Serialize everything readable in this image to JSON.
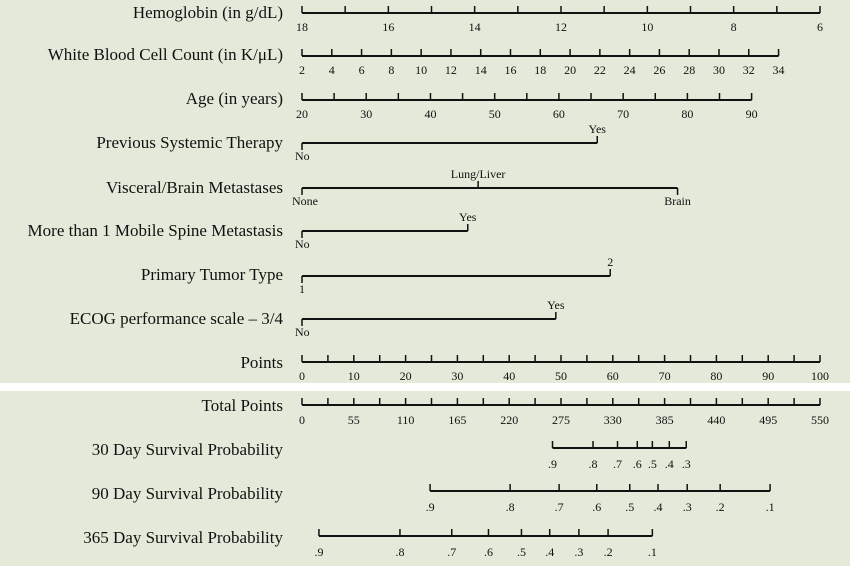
{
  "chart_data": {
    "type": "nomogram",
    "rows": [
      {
        "id": "hemoglobin",
        "label": "Hemoglobin (in g/dL)",
        "ticks": [
          {
            "v": 18,
            "p": 0
          },
          {
            "v": 17,
            "p": 8.33
          },
          {
            "v": 16,
            "p": 16.67
          },
          {
            "v": 15,
            "p": 25
          },
          {
            "v": 14,
            "p": 33.33
          },
          {
            "v": 13,
            "p": 41.67
          },
          {
            "v": 12,
            "p": 50
          },
          {
            "v": 11,
            "p": 58.33
          },
          {
            "v": 10,
            "p": 66.67
          },
          {
            "v": 9,
            "p": 75
          },
          {
            "v": 8,
            "p": 83.33
          },
          {
            "v": 7,
            "p": 91.67
          },
          {
            "v": 6,
            "p": 100
          }
        ],
        "labels": [
          "18",
          "16",
          "14",
          "12",
          "10",
          "8",
          "6"
        ]
      },
      {
        "id": "wbc",
        "label": "White Blood Cell Count (in K/μL)",
        "ticks": [
          {
            "v": 2,
            "p": 0
          },
          {
            "v": 4,
            "p": 5.75
          },
          {
            "v": 6,
            "p": 11.5
          },
          {
            "v": 8,
            "p": 17.25
          },
          {
            "v": 10,
            "p": 23
          },
          {
            "v": 12,
            "p": 28.75
          },
          {
            "v": 14,
            "p": 34.5
          },
          {
            "v": 16,
            "p": 40.25
          },
          {
            "v": 18,
            "p": 46
          },
          {
            "v": 20,
            "p": 51.75
          },
          {
            "v": 22,
            "p": 57.5
          },
          {
            "v": 24,
            "p": 63.25
          },
          {
            "v": 26,
            "p": 69
          },
          {
            "v": 28,
            "p": 74.75
          },
          {
            "v": 30,
            "p": 80.5
          },
          {
            "v": 32,
            "p": 86.25
          },
          {
            "v": 34,
            "p": 92
          }
        ],
        "labels": [
          "2",
          "4",
          "6",
          "8",
          "10",
          "12",
          "14",
          "16",
          "18",
          "20",
          "22",
          "24",
          "26",
          "28",
          "30",
          "32",
          "34"
        ]
      },
      {
        "id": "age",
        "label": "Age (in years)",
        "ticks": [
          {
            "v": 20,
            "p": 0
          },
          {
            "v": 25,
            "p": 6.2
          },
          {
            "v": 30,
            "p": 12.4
          },
          {
            "v": 35,
            "p": 18.6
          },
          {
            "v": 40,
            "p": 24.8
          },
          {
            "v": 45,
            "p": 31
          },
          {
            "v": 50,
            "p": 37.2
          },
          {
            "v": 55,
            "p": 43.4
          },
          {
            "v": 60,
            "p": 49.6
          },
          {
            "v": 65,
            "p": 55.8
          },
          {
            "v": 70,
            "p": 62
          },
          {
            "v": 75,
            "p": 68.2
          },
          {
            "v": 80,
            "p": 74.4
          },
          {
            "v": 85,
            "p": 80.6
          },
          {
            "v": 90,
            "p": 86.8
          }
        ],
        "labels": [
          "20",
          "30",
          "40",
          "50",
          "60",
          "70",
          "80",
          "90"
        ]
      },
      {
        "id": "systemic_therapy",
        "label": "Previous Systemic Therapy",
        "categories": [
          {
            "name": "No",
            "p": 0
          },
          {
            "name": "Yes",
            "p": 57
          }
        ]
      },
      {
        "id": "visceral_brain",
        "label": "Visceral/Brain Metastases",
        "categories": [
          {
            "name": "None",
            "p": 0
          },
          {
            "name": "Lung/Liver",
            "p": 34
          },
          {
            "name": "Brain",
            "p": 72.5
          }
        ]
      },
      {
        "id": "spine_mets",
        "label": "More than 1 Mobile Spine Metastasis",
        "categories": [
          {
            "name": "No",
            "p": 0
          },
          {
            "name": "Yes",
            "p": 32
          }
        ]
      },
      {
        "id": "tumor_type",
        "label": "Primary Tumor Type",
        "categories": [
          {
            "name": "1",
            "p": 0
          },
          {
            "name": "2",
            "p": 59.5
          }
        ]
      },
      {
        "id": "ecog",
        "label": "ECOG performance scale – 3/4",
        "categories": [
          {
            "name": "No",
            "p": 0
          },
          {
            "name": "Yes",
            "p": 49
          }
        ]
      },
      {
        "id": "points",
        "label": "Points",
        "ticks": [
          0,
          5,
          10,
          15,
          20,
          25,
          30,
          35,
          40,
          45,
          50,
          55,
          60,
          65,
          70,
          75,
          80,
          85,
          90,
          95,
          100
        ],
        "labels": [
          "0",
          "10",
          "20",
          "30",
          "40",
          "50",
          "60",
          "70",
          "80",
          "90",
          "100"
        ]
      }
    ],
    "outcomes": [
      {
        "id": "total_points",
        "label": "Total Points",
        "ticks": [
          0,
          27.5,
          55,
          82.5,
          110,
          137.5,
          165,
          192.5,
          220,
          247.5,
          275,
          302.5,
          330,
          357.5,
          385,
          412.5,
          440,
          467.5,
          495,
          522.5,
          550
        ],
        "labels": [
          "0",
          "55",
          "110",
          "165",
          "220",
          "275",
          "330",
          "385",
          "440",
          "495",
          "550"
        ]
      },
      {
        "id": "survival_30d",
        "label": "30 Day Survival Probability",
        "ticks": [
          {
            "v": ".9",
            "t": 266
          },
          {
            "v": ".8",
            "t": 309
          },
          {
            "v": ".7",
            "t": 335
          },
          {
            "v": ".6",
            "t": 356
          },
          {
            "v": ".5",
            "t": 372
          },
          {
            "v": ".4",
            "t": 390
          },
          {
            "v": ".3",
            "t": 408
          }
        ],
        "labels": [
          ".9",
          ".8",
          ".7",
          ".6",
          ".5",
          ".4",
          ".3"
        ]
      },
      {
        "id": "survival_90d",
        "label": "90 Day Survival Probability",
        "ticks": [
          {
            "v": ".9",
            "t": 136
          },
          {
            "v": ".8",
            "t": 221
          },
          {
            "v": ".7",
            "t": 273
          },
          {
            "v": ".6",
            "t": 313
          },
          {
            "v": ".5",
            "t": 348
          },
          {
            "v": ".4",
            "t": 378
          },
          {
            "v": ".3",
            "t": 409
          },
          {
            "v": ".2",
            "t": 444
          },
          {
            "v": ".1",
            "t": 497
          }
        ],
        "labels": [
          ".9",
          ".8",
          ".7",
          ".6",
          ".5",
          ".4",
          ".3",
          ".2",
          ".1"
        ]
      },
      {
        "id": "survival_365d",
        "label": "365 Day Survival Probability",
        "ticks": [
          {
            "v": ".9",
            "t": 18
          },
          {
            "v": ".8",
            "t": 104
          },
          {
            "v": ".7",
            "t": 159
          },
          {
            "v": ".6",
            "t": 198
          },
          {
            "v": ".5",
            "t": 233
          },
          {
            "v": ".4",
            "t": 263
          },
          {
            "v": ".3",
            "t": 294
          },
          {
            "v": ".2",
            "t": 325
          },
          {
            "v": ".1",
            "t": 372
          }
        ],
        "labels": [
          ".9",
          ".8",
          ".7",
          ".6",
          ".5",
          ".4",
          ".3",
          ".2",
          ".1"
        ]
      }
    ],
    "colors": {
      "background": "#e3ead9",
      "separator": "#ffffff",
      "ink": "#111111"
    }
  }
}
